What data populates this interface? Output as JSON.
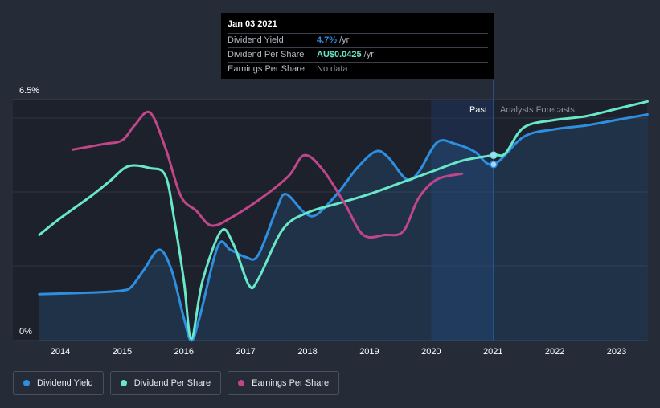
{
  "tooltip": {
    "date": "Jan 03 2021",
    "rows": [
      {
        "name": "Dividend Yield",
        "value": "4.7%",
        "unit": "/yr",
        "color": "#2e8fe0"
      },
      {
        "name": "Dividend Per Share",
        "value": "AU$0.0425",
        "unit": "/yr",
        "color": "#68e8c8"
      },
      {
        "name": "Earnings Per Share",
        "value": "No data",
        "unit": "",
        "color": "#8a8f99"
      }
    ]
  },
  "labels": {
    "past": "Past",
    "forecast": "Analysts Forecasts"
  },
  "legend": [
    {
      "label": "Dividend Yield",
      "color": "#2e8fe0"
    },
    {
      "label": "Dividend Per Share",
      "color": "#68e8c8"
    },
    {
      "label": "Earnings Per Share",
      "color": "#c0468a"
    }
  ],
  "chart_data": {
    "type": "line",
    "title": "",
    "ylim": [
      0,
      6.5
    ],
    "y_tick_labels": [
      "0%",
      "6.5%"
    ],
    "x_ticks": [
      2014,
      2015,
      2016,
      2017,
      2018,
      2019,
      2020,
      2021,
      2022,
      2023
    ],
    "xlim": [
      2013.66,
      2023.5
    ],
    "past_end": 2021.01,
    "forecast_shade_start": 2020.0,
    "series": [
      {
        "name": "Dividend Yield",
        "color": "#2e8fe0",
        "area": true,
        "points": [
          [
            2013.66,
            1.25
          ],
          [
            2014.6,
            1.3
          ],
          [
            2015.0,
            1.35
          ],
          [
            2015.15,
            1.45
          ],
          [
            2015.35,
            1.9
          ],
          [
            2015.6,
            2.45
          ],
          [
            2015.8,
            1.9
          ],
          [
            2016.0,
            0.6
          ],
          [
            2016.12,
            0.0
          ],
          [
            2016.25,
            0.6
          ],
          [
            2016.55,
            2.55
          ],
          [
            2016.75,
            2.45
          ],
          [
            2017.0,
            2.25
          ],
          [
            2017.2,
            2.3
          ],
          [
            2017.5,
            3.55
          ],
          [
            2017.65,
            3.95
          ],
          [
            2017.95,
            3.45
          ],
          [
            2018.15,
            3.4
          ],
          [
            2018.5,
            4.0
          ],
          [
            2018.8,
            4.65
          ],
          [
            2019.1,
            5.1
          ],
          [
            2019.3,
            4.95
          ],
          [
            2019.6,
            4.35
          ],
          [
            2019.8,
            4.55
          ],
          [
            2020.1,
            5.35
          ],
          [
            2020.4,
            5.3
          ],
          [
            2020.7,
            5.1
          ],
          [
            2021.01,
            4.75
          ],
          [
            2021.5,
            5.5
          ],
          [
            2022.0,
            5.7
          ],
          [
            2022.5,
            5.8
          ],
          [
            2023.0,
            5.95
          ],
          [
            2023.5,
            6.1
          ]
        ]
      },
      {
        "name": "Dividend Per Share",
        "color": "#68e8c8",
        "area": false,
        "points": [
          [
            2013.66,
            2.85
          ],
          [
            2014.0,
            3.3
          ],
          [
            2014.5,
            3.9
          ],
          [
            2014.8,
            4.3
          ],
          [
            2015.1,
            4.7
          ],
          [
            2015.45,
            4.65
          ],
          [
            2015.7,
            4.45
          ],
          [
            2015.85,
            3.2
          ],
          [
            2016.0,
            1.6
          ],
          [
            2016.12,
            0.05
          ],
          [
            2016.3,
            1.6
          ],
          [
            2016.6,
            2.95
          ],
          [
            2016.8,
            2.6
          ],
          [
            2017.05,
            1.5
          ],
          [
            2017.2,
            1.65
          ],
          [
            2017.6,
            3.0
          ],
          [
            2018.0,
            3.45
          ],
          [
            2018.5,
            3.7
          ],
          [
            2019.0,
            3.95
          ],
          [
            2019.5,
            4.25
          ],
          [
            2020.0,
            4.55
          ],
          [
            2020.5,
            4.85
          ],
          [
            2021.01,
            5.0
          ],
          [
            2021.2,
            5.05
          ],
          [
            2021.5,
            5.75
          ],
          [
            2022.0,
            5.95
          ],
          [
            2022.5,
            6.05
          ],
          [
            2023.0,
            6.25
          ],
          [
            2023.5,
            6.45
          ]
        ]
      },
      {
        "name": "Earnings Per Share",
        "color": "#c0468a",
        "area": false,
        "points": [
          [
            2014.2,
            5.15
          ],
          [
            2014.7,
            5.3
          ],
          [
            2015.0,
            5.4
          ],
          [
            2015.2,
            5.8
          ],
          [
            2015.45,
            6.15
          ],
          [
            2015.7,
            5.2
          ],
          [
            2015.95,
            3.9
          ],
          [
            2016.2,
            3.5
          ],
          [
            2016.45,
            3.1
          ],
          [
            2016.8,
            3.35
          ],
          [
            2017.3,
            3.9
          ],
          [
            2017.7,
            4.45
          ],
          [
            2017.95,
            5.0
          ],
          [
            2018.25,
            4.6
          ],
          [
            2018.6,
            3.7
          ],
          [
            2018.9,
            2.85
          ],
          [
            2019.25,
            2.85
          ],
          [
            2019.55,
            2.95
          ],
          [
            2019.8,
            3.85
          ],
          [
            2020.1,
            4.35
          ],
          [
            2020.5,
            4.5
          ]
        ]
      }
    ],
    "markers": [
      {
        "series": "Dividend Yield",
        "x": 2021.01,
        "y": 4.75
      },
      {
        "series": "Dividend Per Share",
        "x": 2021.01,
        "y": 5.0
      }
    ]
  }
}
